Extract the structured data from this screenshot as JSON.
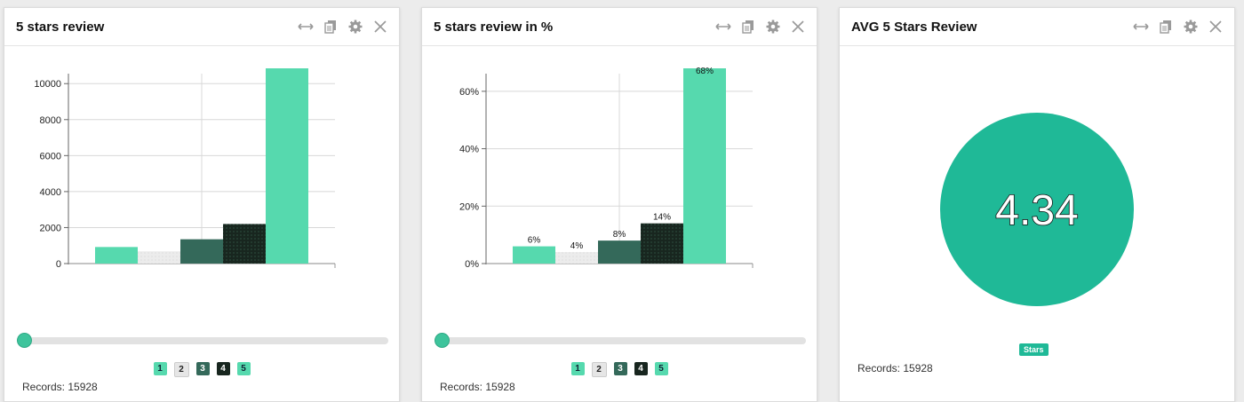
{
  "panels": [
    {
      "title": "5 stars review",
      "records": "Records: 15928",
      "legend": [
        "1",
        "2",
        "3",
        "4",
        "5"
      ],
      "chart_data": {
        "type": "bar",
        "categories": [
          "1",
          "2",
          "3",
          "4",
          "5"
        ],
        "values": [
          920,
          680,
          1350,
          2200,
          10850
        ],
        "ylim": [
          0,
          10850
        ],
        "yticks": [
          "0",
          "2000",
          "4000",
          "6000",
          "8000",
          "10000"
        ],
        "ytick_values": [
          0,
          2000,
          4000,
          6000,
          8000,
          10000
        ],
        "grid": true
      }
    },
    {
      "title": "5 stars review in %",
      "records": "Records: 15928",
      "legend": [
        "1",
        "2",
        "3",
        "4",
        "5"
      ],
      "chart_data": {
        "type": "bar",
        "categories": [
          "1",
          "2",
          "3",
          "4",
          "5"
        ],
        "values": [
          6,
          4,
          8,
          14,
          68
        ],
        "value_labels": [
          "6%",
          "4%",
          "8%",
          "14%",
          "68%"
        ],
        "ylim": [
          0,
          68
        ],
        "yticks": [
          "0%",
          "20%",
          "40%",
          "60%"
        ],
        "ytick_values": [
          0,
          20,
          40,
          60
        ],
        "grid": true
      }
    },
    {
      "title": "AVG 5 Stars Review",
      "records": "Records: 15928",
      "value": "4.34",
      "badge": "Stars"
    }
  ],
  "colors": {
    "bar_1": "#56d9ae",
    "bar_2": "#e6e6e6",
    "bar_3": "#34695a",
    "bar_4": "#18261f",
    "bar_5": "#56d9ae",
    "accent": "#1fb997"
  },
  "icons": [
    "resize-icon",
    "copy-icon",
    "gear-icon",
    "close-icon"
  ]
}
